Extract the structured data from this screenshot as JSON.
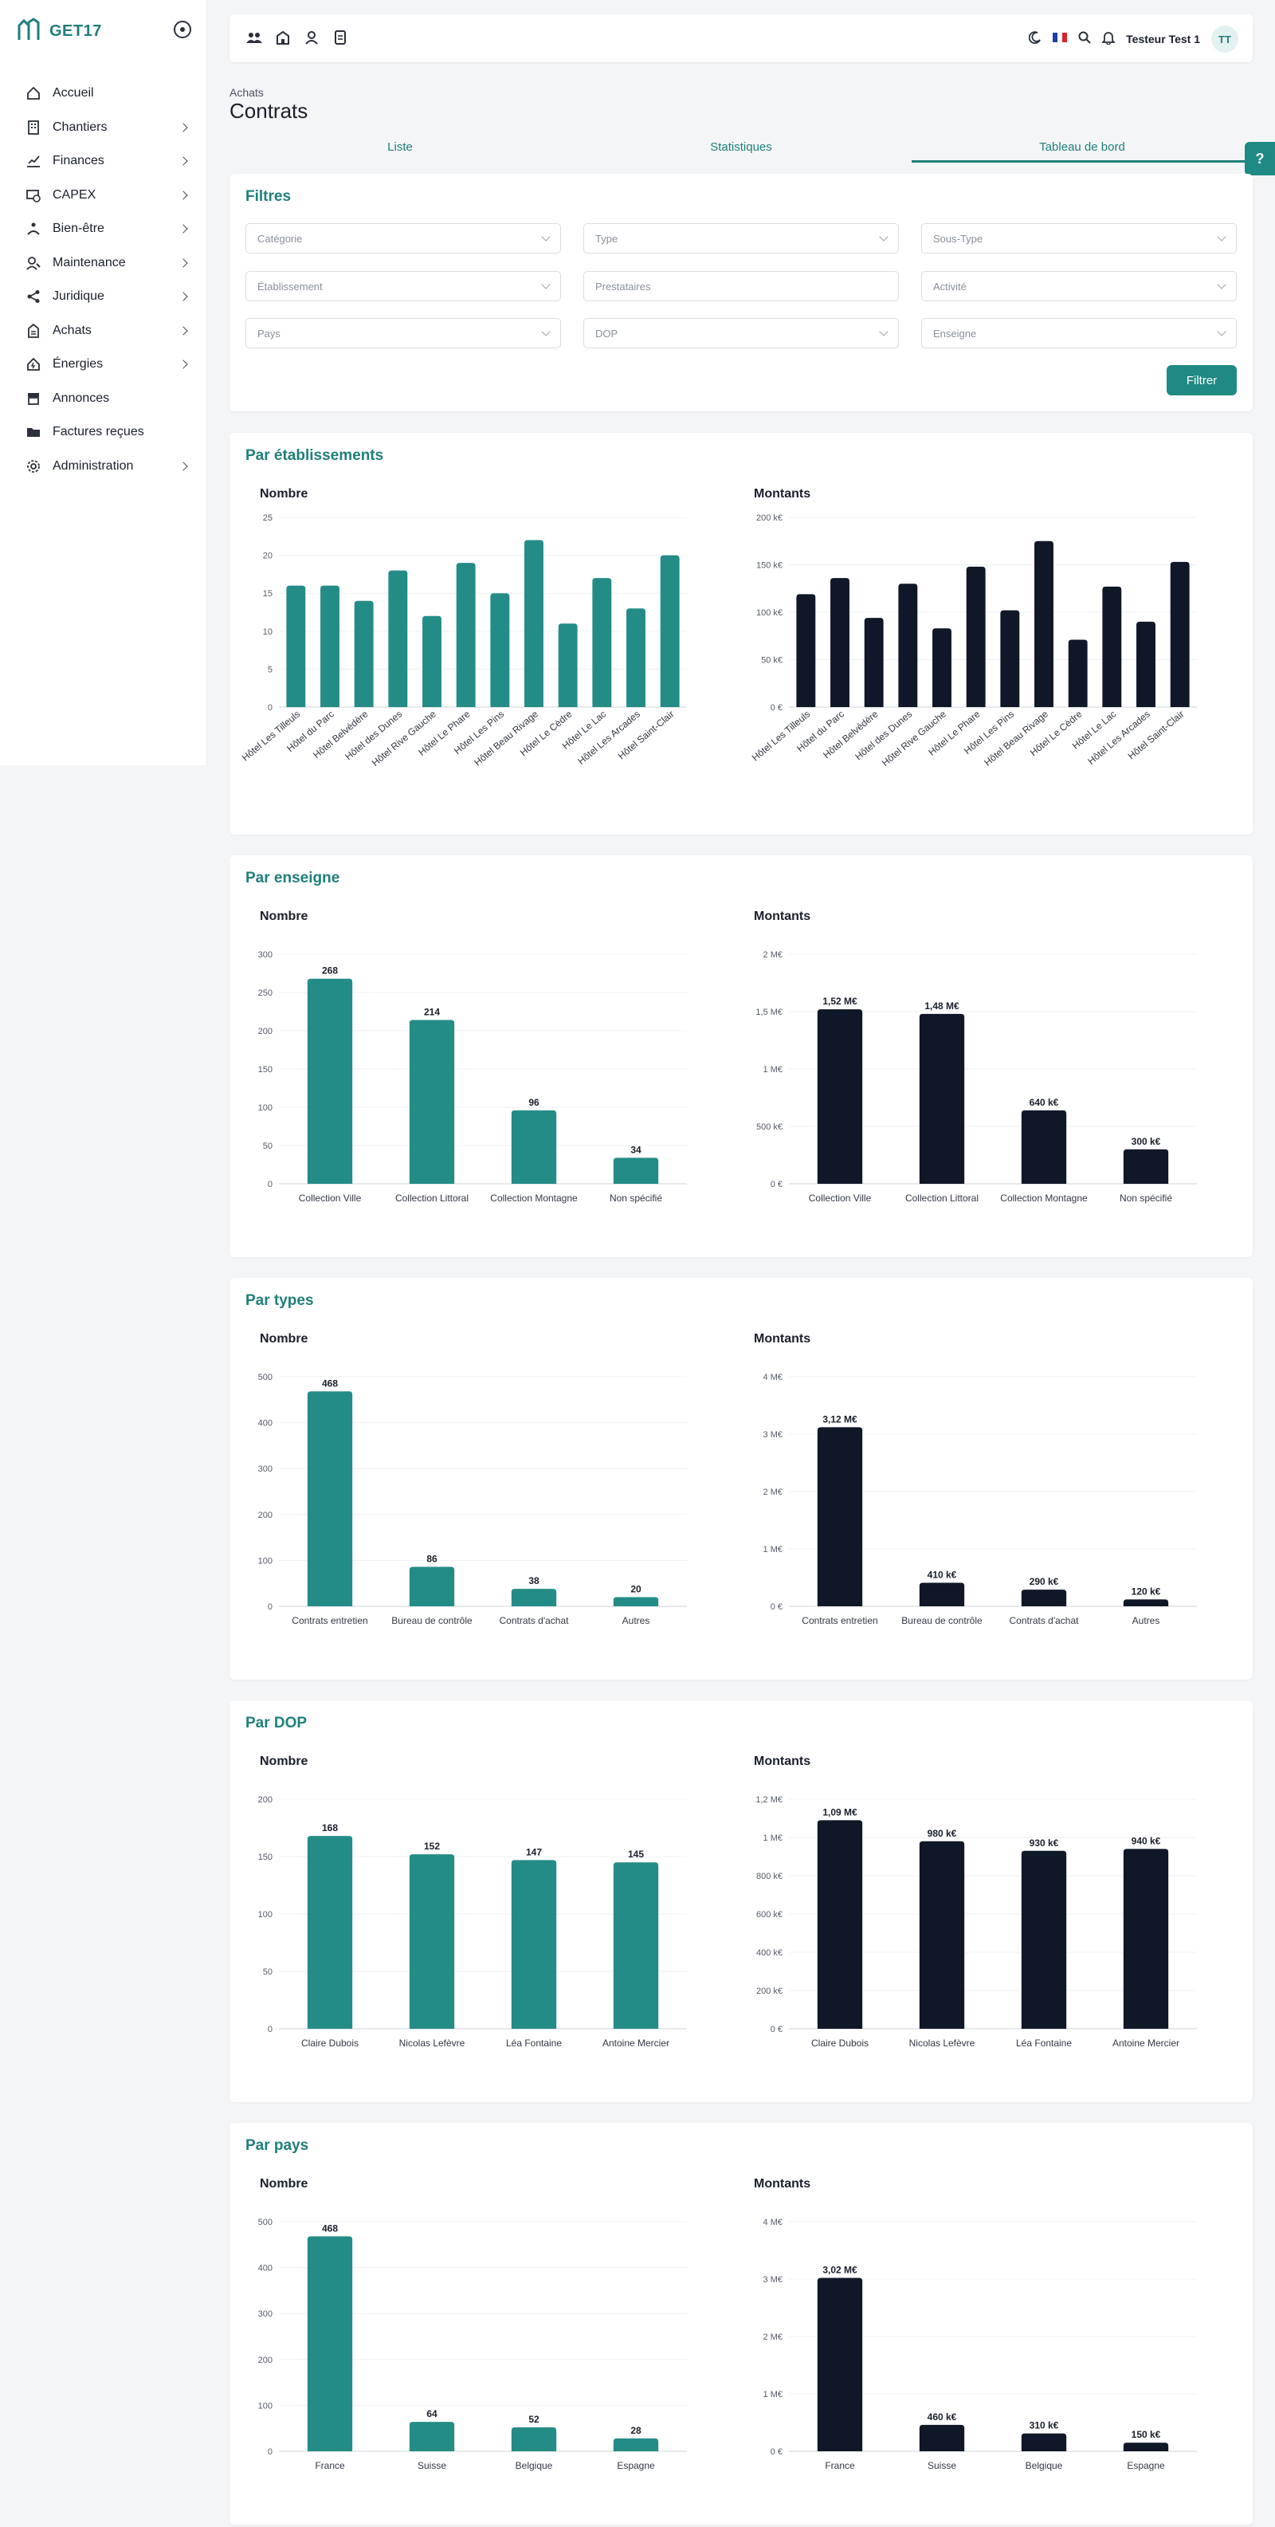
{
  "app": {
    "name": "GET17"
  },
  "sidebar": {
    "items": [
      {
        "label": "Accueil",
        "icon": "home-icon",
        "chevron": false
      },
      {
        "label": "Chantiers",
        "icon": "building-icon",
        "chevron": true
      },
      {
        "label": "Finances",
        "icon": "finance-icon",
        "chevron": true
      },
      {
        "label": "CAPEX",
        "icon": "capex-icon",
        "chevron": true
      },
      {
        "label": "Bien-être",
        "icon": "wellbeing-icon",
        "chevron": true
      },
      {
        "label": "Maintenance",
        "icon": "maintenance-icon",
        "chevron": true
      },
      {
        "label": "Juridique",
        "icon": "share-icon",
        "chevron": true
      },
      {
        "label": "Achats",
        "icon": "purchase-icon",
        "chevron": true
      },
      {
        "label": "Énergies",
        "icon": "energy-icon",
        "chevron": true
      },
      {
        "label": "Annonces",
        "icon": "store-icon",
        "chevron": false
      },
      {
        "label": "Factures reçues",
        "icon": "invoice-folder-icon",
        "chevron": false
      },
      {
        "label": "Administration",
        "icon": "gear-icon",
        "chevron": true
      }
    ]
  },
  "topbar": {
    "user_name": "Testeur Test 1",
    "user_initials": "TT"
  },
  "page": {
    "breadcrumb": "Achats",
    "title": "Contrats"
  },
  "tabs": [
    {
      "label": "Liste",
      "active": false
    },
    {
      "label": "Statistiques",
      "active": false
    },
    {
      "label": "Tableau de bord",
      "active": true
    }
  ],
  "filters": {
    "title": "Filtres",
    "fields": [
      {
        "placeholder": "Catégorie",
        "dropdown": true
      },
      {
        "placeholder": "Type",
        "dropdown": true
      },
      {
        "placeholder": "Sous-Type",
        "dropdown": true
      },
      {
        "placeholder": "Établissement",
        "dropdown": true
      },
      {
        "placeholder": "Prestataires",
        "dropdown": false
      },
      {
        "placeholder": "Activité",
        "dropdown": true
      },
      {
        "placeholder": "Pays",
        "dropdown": true
      },
      {
        "placeholder": "DOP",
        "dropdown": true
      },
      {
        "placeholder": "Enseigne",
        "dropdown": true
      }
    ],
    "submit_label": "Filtrer"
  },
  "colors": {
    "accent": "#1f7f7a",
    "bar_count": "#248c86",
    "bar_amount": "#0f1728"
  },
  "sections": [
    {
      "title": "Par établissements",
      "left_title": "Nombre",
      "right_title": "Montants"
    },
    {
      "title": "Par enseigne",
      "left_title": "Nombre",
      "right_title": "Montants"
    },
    {
      "title": "Par types",
      "left_title": "Nombre",
      "right_title": "Montants"
    },
    {
      "title": "Par DOP",
      "left_title": "Nombre",
      "right_title": "Montants"
    },
    {
      "title": "Par pays",
      "left_title": "Nombre",
      "right_title": "Montants"
    }
  ],
  "chart_data": [
    {
      "type": "bar",
      "title": "Nombre",
      "categories": [
        "Hôtel Les Tilleuls",
        "Hôtel du Parc",
        "Hôtel Belvédère",
        "Hôtel des Dunes",
        "Hôtel Rive Gauche",
        "Hôtel Le Phare",
        "Hôtel Les Pins",
        "Hôtel Beau Rivage",
        "Hôtel Le Cèdre",
        "Hôtel Le Lac",
        "Hôtel Les Arcades",
        "Hôtel Saint-Clair"
      ],
      "values": [
        16,
        16,
        14,
        18,
        12,
        19,
        15,
        22,
        11,
        17,
        13,
        20
      ],
      "ylim": [
        0,
        25
      ],
      "yticks": [
        0,
        5,
        10,
        15,
        20,
        25
      ],
      "ytick_labels": [
        "0",
        "5",
        "10",
        "15",
        "20",
        "25"
      ],
      "rotated_labels": true,
      "show_values": false
    },
    {
      "type": "bar",
      "title": "Montants",
      "categories": [
        "Hôtel Les Tilleuls",
        "Hôtel du Parc",
        "Hôtel Belvédère",
        "Hôtel des Dunes",
        "Hôtel Rive Gauche",
        "Hôtel Le Phare",
        "Hôtel Les Pins",
        "Hôtel Beau Rivage",
        "Hôtel Le Cèdre",
        "Hôtel Le Lac",
        "Hôtel Les Arcades",
        "Hôtel Saint-Clair"
      ],
      "values": [
        119,
        136,
        94,
        130,
        83,
        148,
        102,
        175,
        71,
        127,
        90,
        153
      ],
      "unit": "k€",
      "ylim": [
        0,
        200
      ],
      "yticks": [
        0,
        50,
        100,
        150,
        200
      ],
      "ytick_labels": [
        "0 €",
        "50 k€",
        "100 k€",
        "150 k€",
        "200 k€"
      ],
      "rotated_labels": true,
      "show_values": false
    },
    {
      "type": "bar",
      "title": "Nombre",
      "categories": [
        "Collection Ville",
        "Collection Littoral",
        "Collection Montagne",
        "Non spécifié"
      ],
      "values": [
        268,
        214,
        96,
        34
      ],
      "value_labels": [
        "268",
        "214",
        "96",
        "34"
      ],
      "ylim": [
        0,
        300
      ],
      "yticks": [
        0,
        50,
        100,
        150,
        200,
        250,
        300
      ],
      "ytick_labels": [
        "0",
        "50",
        "100",
        "150",
        "200",
        "250",
        "300"
      ],
      "show_values": true
    },
    {
      "type": "bar",
      "title": "Montants",
      "categories": [
        "Collection Ville",
        "Collection Littoral",
        "Collection Montagne",
        "Non spécifié"
      ],
      "values": [
        1.52,
        1.48,
        0.64,
        0.3
      ],
      "value_labels": [
        "1,52 M€",
        "1,48 M€",
        "640 k€",
        "300 k€"
      ],
      "unit": "M€",
      "ylim": [
        0,
        2
      ],
      "yticks": [
        0,
        0.5,
        1,
        1.5,
        2
      ],
      "ytick_labels": [
        "0 €",
        "500 k€",
        "1 M€",
        "1,5 M€",
        "2 M€"
      ],
      "show_values": true
    },
    {
      "type": "bar",
      "title": "Nombre",
      "categories": [
        "Contrats entretien",
        "Bureau de contrôle",
        "Contrats d'achat",
        "Autres"
      ],
      "values": [
        468,
        86,
        38,
        20
      ],
      "value_labels": [
        "468",
        "86",
        "38",
        "20"
      ],
      "ylim": [
        0,
        500
      ],
      "yticks": [
        0,
        100,
        200,
        300,
        400,
        500
      ],
      "ytick_labels": [
        "0",
        "100",
        "200",
        "300",
        "400",
        "500"
      ],
      "show_values": true
    },
    {
      "type": "bar",
      "title": "Montants",
      "categories": [
        "Contrats entretien",
        "Bureau de contrôle",
        "Contrats d'achat",
        "Autres"
      ],
      "values": [
        3.12,
        0.41,
        0.29,
        0.12
      ],
      "value_labels": [
        "3,12 M€",
        "410 k€",
        "290 k€",
        "120 k€"
      ],
      "unit": "M€",
      "ylim": [
        0,
        4
      ],
      "yticks": [
        0,
        1,
        2,
        3,
        4
      ],
      "ytick_labels": [
        "0 €",
        "1 M€",
        "2 M€",
        "3 M€",
        "4 M€"
      ],
      "show_values": true
    },
    {
      "type": "bar",
      "title": "Nombre",
      "categories": [
        "Claire Dubois",
        "Nicolas Lefèvre",
        "Léa Fontaine",
        "Antoine Mercier"
      ],
      "values": [
        168,
        152,
        147,
        145
      ],
      "value_labels": [
        "168",
        "152",
        "147",
        "145"
      ],
      "ylim": [
        0,
        200
      ],
      "yticks": [
        0,
        50,
        100,
        150,
        200
      ],
      "ytick_labels": [
        "0",
        "50",
        "100",
        "150",
        "200"
      ],
      "show_values": true
    },
    {
      "type": "bar",
      "title": "Montants",
      "categories": [
        "Claire Dubois",
        "Nicolas Lefèvre",
        "Léa Fontaine",
        "Antoine Mercier"
      ],
      "values": [
        1.09,
        0.98,
        0.93,
        0.94
      ],
      "value_labels": [
        "1,09 M€",
        "980 k€",
        "930 k€",
        "940 k€"
      ],
      "unit": "M€",
      "ylim": [
        0,
        1.2
      ],
      "yticks": [
        0,
        0.2,
        0.4,
        0.6,
        0.8,
        1,
        1.2
      ],
      "ytick_labels": [
        "0 €",
        "200 k€",
        "400 k€",
        "600 k€",
        "800 k€",
        "1 M€",
        "1,2 M€"
      ],
      "show_values": true
    },
    {
      "type": "bar",
      "title": "Nombre",
      "categories": [
        "France",
        "Suisse",
        "Belgique",
        "Espagne"
      ],
      "values": [
        468,
        64,
        52,
        28
      ],
      "value_labels": [
        "468",
        "64",
        "52",
        "28"
      ],
      "ylim": [
        0,
        500
      ],
      "yticks": [
        0,
        100,
        200,
        300,
        400,
        500
      ],
      "ytick_labels": [
        "0",
        "100",
        "200",
        "300",
        "400",
        "500"
      ],
      "show_values": true
    },
    {
      "type": "bar",
      "title": "Montants",
      "categories": [
        "France",
        "Suisse",
        "Belgique",
        "Espagne"
      ],
      "values": [
        3.02,
        0.46,
        0.31,
        0.15
      ],
      "value_labels": [
        "3,02 M€",
        "460 k€",
        "310 k€",
        "150 k€"
      ],
      "unit": "M€",
      "ylim": [
        0,
        4
      ],
      "yticks": [
        0,
        1,
        2,
        3,
        4
      ],
      "ytick_labels": [
        "0 €",
        "1 M€",
        "2 M€",
        "3 M€",
        "4 M€"
      ],
      "show_values": true
    }
  ]
}
